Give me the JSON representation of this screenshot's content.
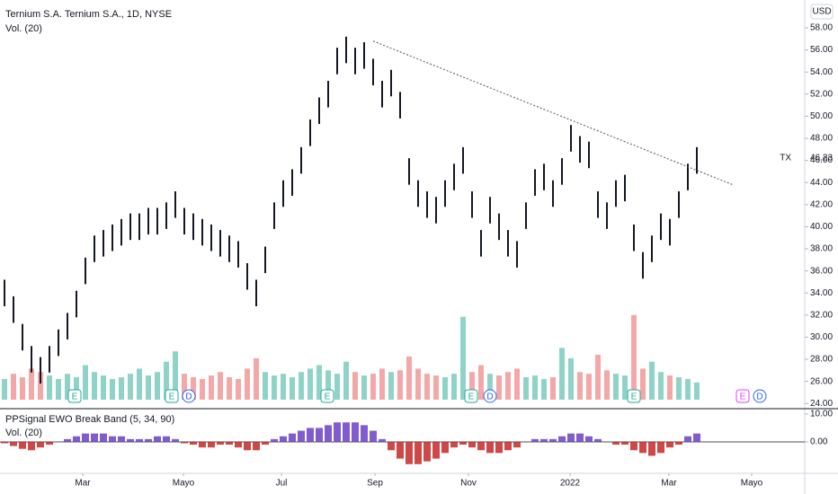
{
  "chart_data": {
    "type": "stock",
    "title": "Ternium S.A. Ternium S.A., 1D, NYSE",
    "volume_label": "Vol. (20)",
    "currency": "USD",
    "symbol": "TX",
    "last_price": 46.23,
    "xlim": [
      -0.5,
      89
    ],
    "xticks": [
      {
        "value": 8.7,
        "label": "Mar"
      },
      {
        "value": 19.9,
        "label": "Mayo"
      },
      {
        "value": 30.8,
        "label": "Jul"
      },
      {
        "value": 41.2,
        "label": "Sep"
      },
      {
        "value": 51.6,
        "label": "Nov"
      },
      {
        "value": 62.9,
        "label": "2022"
      },
      {
        "value": 73.9,
        "label": "Mar"
      },
      {
        "value": 83.1,
        "label": "Mayo"
      }
    ],
    "ylim": [
      23.53,
      60.52
    ],
    "yticks": [
      {
        "value": 24,
        "label": "24.00"
      },
      {
        "value": 26,
        "label": "26.00"
      },
      {
        "value": 28,
        "label": "28.00"
      },
      {
        "value": 30,
        "label": "30.00"
      },
      {
        "value": 32,
        "label": "32.00"
      },
      {
        "value": 34,
        "label": "34.00"
      },
      {
        "value": 36,
        "label": "36.00"
      },
      {
        "value": 38,
        "label": "38.00"
      },
      {
        "value": 40,
        "label": "40.00"
      },
      {
        "value": 42,
        "label": "42.00"
      },
      {
        "value": 44,
        "label": "44.00"
      },
      {
        "value": 46,
        "label": "46.00"
      },
      {
        "value": 48,
        "label": "48.00"
      },
      {
        "value": 50,
        "label": "50.00"
      },
      {
        "value": 52,
        "label": "52.00"
      },
      {
        "value": 54,
        "label": "54.00"
      },
      {
        "value": 56,
        "label": "56.00"
      },
      {
        "value": 58,
        "label": "58.00"
      }
    ],
    "color": "#131722",
    "highs": [
      35.2,
      33.7,
      31.2,
      29.2,
      28.2,
      29.2,
      30.7,
      32.2,
      34.2,
      37.2,
      39.2,
      39.7,
      40.2,
      40.7,
      41.2,
      41.2,
      41.7,
      41.7,
      42.2,
      43.2,
      41.7,
      41.2,
      40.7,
      40.2,
      39.7,
      39.2,
      38.7,
      36.7,
      35.2,
      38.2,
      42.2,
      44.2,
      45.2,
      47.2,
      49.7,
      51.7,
      53.2,
      56.2,
      57.2,
      56.2,
      56.7,
      55.2,
      53.2,
      54.2,
      52.2,
      46.2,
      44.2,
      43.2,
      42.7,
      44.2,
      45.7,
      47.2,
      43.2,
      39.7,
      42.7,
      41.2,
      39.7,
      38.7,
      42.2,
      45.2,
      45.7,
      44.2,
      46.2,
      49.2,
      48.2,
      47.7,
      43.2,
      42.2,
      44.2,
      44.7,
      40.2,
      37.7,
      39.2,
      41.2,
      40.7,
      43.2,
      45.7,
      47.2
    ],
    "lows": [
      32.8,
      31.3,
      28.8,
      26.8,
      25.8,
      26.8,
      28.3,
      29.8,
      31.8,
      34.8,
      36.8,
      37.3,
      37.8,
      38.3,
      38.8,
      38.8,
      39.3,
      39.3,
      39.8,
      40.8,
      39.3,
      38.8,
      38.3,
      37.8,
      37.3,
      36.8,
      36.3,
      34.3,
      32.8,
      35.8,
      39.8,
      41.8,
      42.8,
      44.8,
      47.3,
      49.3,
      50.8,
      53.8,
      54.8,
      53.8,
      54.3,
      52.8,
      50.8,
      51.8,
      49.8,
      43.8,
      41.8,
      40.8,
      40.3,
      41.8,
      43.3,
      44.8,
      40.8,
      37.3,
      40.3,
      38.8,
      37.3,
      36.3,
      39.8,
      42.8,
      43.3,
      41.8,
      43.8,
      46.8,
      45.8,
      45.3,
      40.8,
      39.8,
      41.8,
      42.3,
      37.8,
      35.3,
      36.8,
      38.8,
      38.3,
      40.8,
      43.3,
      44.8
    ],
    "volume": {
      "ylim": [
        0,
        5.2
      ],
      "up_color": "#8fd3c8",
      "down_color": "#f4a7a7",
      "values": [
        1.2,
        1.5,
        1.3,
        1.8,
        1.6,
        1.4,
        1.2,
        1.5,
        1.3,
        2.0,
        1.6,
        1.4,
        1.2,
        1.3,
        1.5,
        1.8,
        1.4,
        1.6,
        2.2,
        2.8,
        1.5,
        1.3,
        1.2,
        1.4,
        1.6,
        1.3,
        1.2,
        1.8,
        2.4,
        1.6,
        1.4,
        1.5,
        1.3,
        1.6,
        1.8,
        2.0,
        1.7,
        1.5,
        2.2,
        1.6,
        1.4,
        1.5,
        1.8,
        1.6,
        1.7,
        2.5,
        1.8,
        1.5,
        1.4,
        1.3,
        1.5,
        4.8,
        1.6,
        2.0,
        1.5,
        1.4,
        1.6,
        1.8,
        1.3,
        1.4,
        1.2,
        1.3,
        3.0,
        2.4,
        1.6,
        1.5,
        2.6,
        1.7,
        1.5,
        1.4,
        4.9,
        1.8,
        2.2,
        1.6,
        1.4,
        1.3,
        1.2,
        1.0
      ]
    },
    "trendline": {
      "x": [
        41,
        81
      ],
      "y": [
        56.8,
        43.8
      ],
      "color": "#555555"
    },
    "events": [
      {
        "label": "E",
        "x": 7.8
      },
      {
        "label": "E",
        "x": 18.6
      },
      {
        "label": "D",
        "x": 20.5
      },
      {
        "label": "E",
        "x": 35.9
      },
      {
        "label": "E",
        "x": 51.9
      },
      {
        "label": "D",
        "x": 54
      },
      {
        "label": "E",
        "x": 70
      },
      {
        "label": "E",
        "x": 82.1
      },
      {
        "label": "D",
        "x": 84
      }
    ],
    "ewo": {
      "title": "PPSignal EWO Break Band (5, 34, 90)",
      "volume_label": "Vol. (20)",
      "ylim": [
        -11.3,
        11.6
      ],
      "yticks": [
        {
          "value": 0,
          "label": "0.00"
        },
        {
          "value": 10,
          "label": "10.00"
        }
      ],
      "pos_color": "#6a3fc4",
      "neg_color": "#c62828",
      "values": [
        -0.5,
        -1.5,
        -2.5,
        -3,
        -2,
        -1,
        0,
        1,
        2,
        3,
        3,
        3,
        2,
        2,
        1,
        1,
        1,
        2,
        2,
        1,
        -0.5,
        -1,
        -2,
        -2,
        -1,
        -1,
        -2,
        -3,
        -3,
        -1,
        1,
        2,
        3,
        4,
        5,
        5,
        6,
        7,
        7,
        7,
        6,
        4,
        1,
        -3,
        -6,
        -8,
        -8,
        -7,
        -6,
        -4,
        -2,
        -1,
        -2,
        -3,
        -4,
        -4,
        -3,
        -2,
        0,
        1,
        1,
        1,
        2,
        3,
        3,
        2,
        1,
        0,
        -1,
        -1,
        -3,
        -4,
        -5,
        -4,
        -2,
        -1,
        2,
        3
      ]
    }
  }
}
